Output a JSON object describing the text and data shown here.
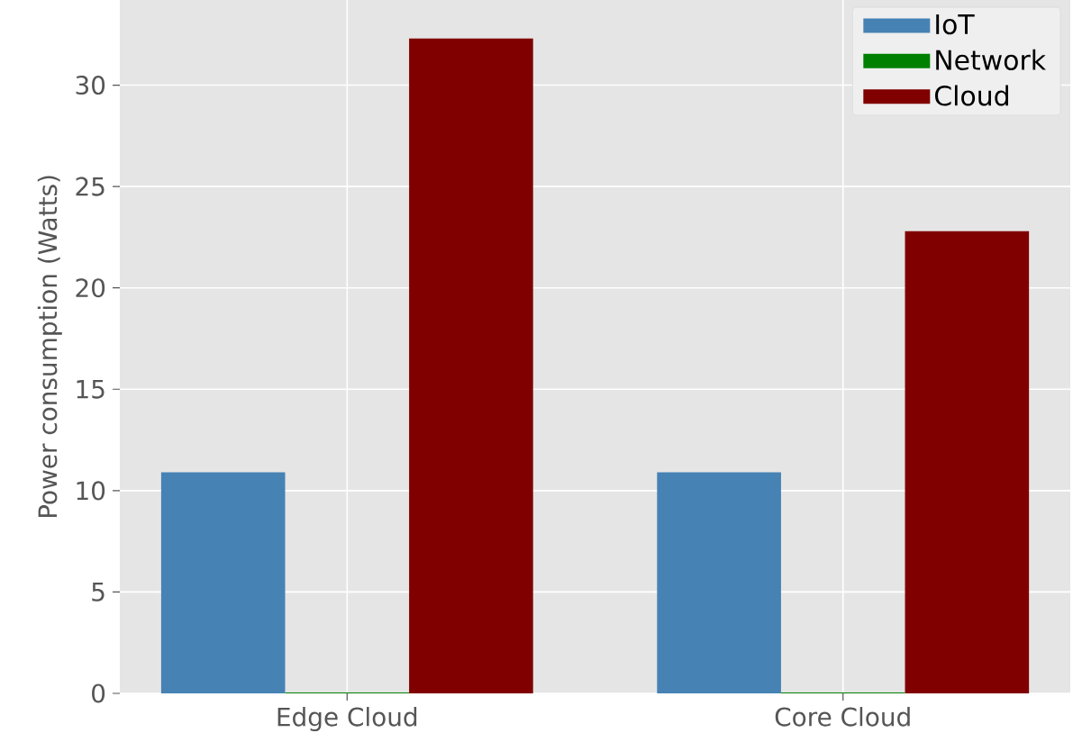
{
  "chart_data": {
    "type": "bar",
    "ylabel": "Power consumption (Watts)",
    "categories": [
      "Edge Cloud",
      "Core Cloud"
    ],
    "series": [
      {
        "name": "IoT",
        "color": "#4682b4",
        "values": [
          10.9,
          10.9
        ]
      },
      {
        "name": "Network",
        "color": "#008000",
        "values": [
          0.05,
          0.05
        ]
      },
      {
        "name": "Cloud",
        "color": "#800000",
        "values": [
          32.3,
          22.8
        ]
      }
    ],
    "ylim": [
      0,
      34.2
    ],
    "yticks": [
      0,
      5,
      10,
      15,
      20,
      25,
      30
    ],
    "grid": true,
    "legend": "top right"
  }
}
